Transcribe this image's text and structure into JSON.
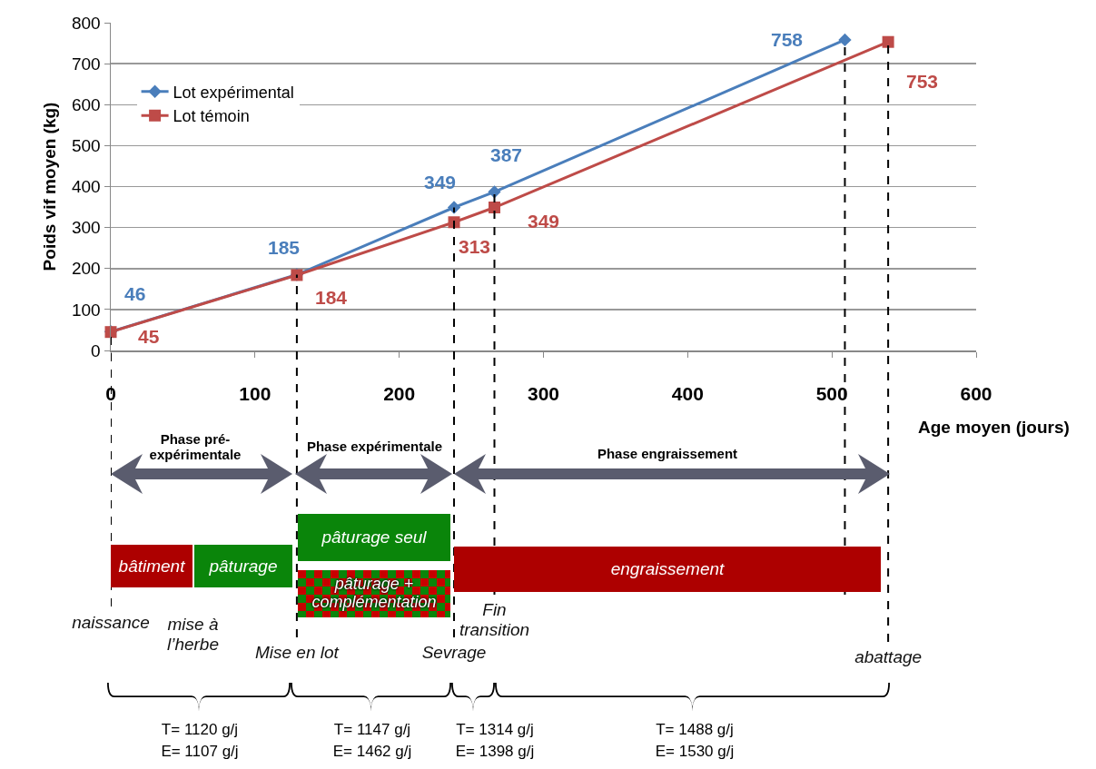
{
  "chart_data": {
    "type": "line",
    "xlabel": "Age moyen (jours)",
    "ylabel": "Poids vif moyen (kg)",
    "xlim": [
      0,
      600
    ],
    "xticks": [
      0,
      100,
      200,
      300,
      400,
      500,
      600
    ],
    "ylim": [
      0,
      800
    ],
    "yticks": [
      0,
      100,
      200,
      300,
      400,
      500,
      600,
      700,
      800
    ],
    "grid": "y",
    "legend": "top left",
    "data_labels": true,
    "series": [
      {
        "name": "Lot expérimental",
        "color": "#4a7ebb",
        "marker": "diamond",
        "x": [
          0,
          129,
          238,
          266,
          509
        ],
        "values": [
          46,
          185,
          349,
          387,
          758
        ]
      },
      {
        "name": "Lot témoin",
        "color": "#be4b48",
        "marker": "square",
        "x": [
          0,
          129,
          238,
          266,
          539
        ],
        "values": [
          45,
          184,
          313,
          349,
          753
        ]
      }
    ],
    "ref_lines": [
      {
        "axis": "x",
        "value": 0,
        "label": "naissance",
        "line_style": "dashed"
      },
      {
        "axis": "x",
        "value": 129,
        "label": "Mise en lot",
        "line_style": "dashed"
      },
      {
        "axis": "x",
        "value": 238,
        "label": "Sevrage",
        "line_style": "dashed"
      },
      {
        "axis": "x",
        "value": 266,
        "label": "Fin transition",
        "line_style": "dashed"
      },
      {
        "axis": "x",
        "value": 509,
        "label": null,
        "line_style": "dashed"
      },
      {
        "axis": "x",
        "value": 539,
        "label": "abattage",
        "line_style": "dashed"
      }
    ],
    "annotations": [
      "Phase pré-expérimentale",
      "Phase expérimentale",
      "Phase engraissement",
      "bâtiment",
      "pâturage",
      "pâturage seul",
      "pâturage + complémentation",
      "engraissement",
      "mise à l’herbe",
      "T= 1120 g/j\nE= 1107 g/j",
      "T= 1147 g/j\nE= 1462 g/j",
      "T= 1314 g/j\nE= 1398 g/j",
      "T= 1488 g/j\nE= 1530 g/j"
    ]
  }
}
